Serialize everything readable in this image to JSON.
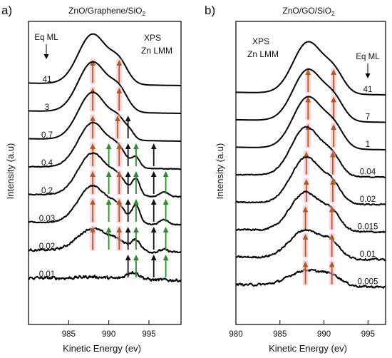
{
  "chart_data": [
    {
      "type": "line",
      "panel_label": "a)",
      "title_parts": [
        "ZnO/Graphene/SiO",
        "2"
      ],
      "xlabel": "Kinetic Energy (ev)",
      "ylabel": "Intensity (a.u)",
      "xlim": [
        980,
        999
      ],
      "x_ticks": [
        985,
        990,
        995
      ],
      "annotation_lines": [
        "XPS",
        "Zn LMM"
      ],
      "legend_header": "Eq ML",
      "colors": {
        "orange": "#b35a1f",
        "green": "#2e8b2e",
        "black": "#111111",
        "glow": "#f4b6c8"
      },
      "series": [
        {
          "name": "41",
          "peaks": [
            {
              "x": 988.0,
              "h": 1.0,
              "w": 1.8
            },
            {
              "x": 991.3,
              "h": 0.38,
              "w": 1.1
            }
          ],
          "noise": 0.0,
          "arrows": [
            {
              "x": 988.0,
              "c": "orange"
            },
            {
              "x": 991.3,
              "c": "orange"
            }
          ]
        },
        {
          "name": "3",
          "peaks": [
            {
              "x": 988.0,
              "h": 1.0,
              "w": 1.8
            },
            {
              "x": 991.3,
              "h": 0.38,
              "w": 1.1
            }
          ],
          "noise": 0.0,
          "arrows": [
            {
              "x": 988.0,
              "c": "orange"
            },
            {
              "x": 991.3,
              "c": "orange"
            }
          ]
        },
        {
          "name": "0.7",
          "peaks": [
            {
              "x": 988.0,
              "h": 0.95,
              "w": 1.8
            },
            {
              "x": 991.3,
              "h": 0.32,
              "w": 1.0
            },
            {
              "x": 992.7,
              "h": 0.08,
              "w": 0.5
            }
          ],
          "noise": 0.0,
          "arrows": [
            {
              "x": 988.0,
              "c": "orange"
            },
            {
              "x": 991.1,
              "c": "orange"
            },
            {
              "x": 992.4,
              "c": "black"
            }
          ]
        },
        {
          "name": "0.4",
          "peaks": [
            {
              "x": 988.0,
              "h": 0.9,
              "w": 1.8
            },
            {
              "x": 991.2,
              "h": 0.3,
              "w": 1.0
            },
            {
              "x": 993.4,
              "h": 0.2,
              "w": 0.5
            }
          ],
          "noise": 0.01,
          "arrows": [
            {
              "x": 988.0,
              "c": "orange"
            },
            {
              "x": 990.0,
              "c": "green"
            },
            {
              "x": 991.3,
              "c": "orange"
            },
            {
              "x": 992.4,
              "c": "black"
            },
            {
              "x": 993.4,
              "c": "green"
            },
            {
              "x": 995.6,
              "c": "black"
            }
          ]
        },
        {
          "name": "0.2",
          "peaks": [
            {
              "x": 988.0,
              "h": 0.85,
              "w": 1.8
            },
            {
              "x": 991.2,
              "h": 0.28,
              "w": 1.0
            },
            {
              "x": 993.4,
              "h": 0.32,
              "w": 0.5
            },
            {
              "x": 996.9,
              "h": 0.1,
              "w": 0.5
            }
          ],
          "noise": 0.015,
          "arrows": [
            {
              "x": 988.0,
              "c": "orange"
            },
            {
              "x": 990.0,
              "c": "green"
            },
            {
              "x": 991.3,
              "c": "orange"
            },
            {
              "x": 992.4,
              "c": "black"
            },
            {
              "x": 993.4,
              "c": "green"
            },
            {
              "x": 995.6,
              "c": "black"
            },
            {
              "x": 997.1,
              "c": "green"
            }
          ]
        },
        {
          "name": "0.03",
          "peaks": [
            {
              "x": 988.0,
              "h": 0.75,
              "w": 1.8
            },
            {
              "x": 991.2,
              "h": 0.25,
              "w": 1.0
            },
            {
              "x": 993.4,
              "h": 0.35,
              "w": 0.5
            },
            {
              "x": 996.9,
              "h": 0.1,
              "w": 0.5
            }
          ],
          "noise": 0.02,
          "arrows": [
            {
              "x": 988.0,
              "c": "orange"
            },
            {
              "x": 990.0,
              "c": "green"
            },
            {
              "x": 991.3,
              "c": "orange"
            },
            {
              "x": 992.4,
              "c": "black"
            },
            {
              "x": 993.4,
              "c": "green"
            },
            {
              "x": 995.6,
              "c": "black"
            },
            {
              "x": 997.1,
              "c": "green"
            }
          ]
        },
        {
          "name": "0.02",
          "peaks": [
            {
              "x": 988.0,
              "h": 0.45,
              "w": 1.9
            },
            {
              "x": 991.2,
              "h": 0.15,
              "w": 1.0
            },
            {
              "x": 993.4,
              "h": 0.22,
              "w": 0.6
            },
            {
              "x": 996.9,
              "h": 0.05,
              "w": 0.5
            }
          ],
          "noise": 0.035,
          "arrows": [
            {
              "x": 988.0,
              "c": "orange"
            },
            {
              "x": 990.0,
              "c": "green"
            },
            {
              "x": 991.3,
              "c": "orange"
            },
            {
              "x": 992.4,
              "c": "black"
            },
            {
              "x": 993.4,
              "c": "green"
            },
            {
              "x": 995.6,
              "c": "black"
            },
            {
              "x": 997.1,
              "c": "green"
            }
          ]
        },
        {
          "name": "0.01",
          "peaks": [
            {
              "x": 993.0,
              "h": 0.15,
              "w": 0.8
            },
            {
              "x": 988.0,
              "h": 0.04,
              "w": 1.8
            }
          ],
          "noise": 0.05,
          "arrows": [
            {
              "x": 992.4,
              "c": "black"
            },
            {
              "x": 993.4,
              "c": "green"
            },
            {
              "x": 995.6,
              "c": "black"
            },
            {
              "x": 997.1,
              "c": "green"
            }
          ]
        }
      ]
    },
    {
      "type": "line",
      "panel_label": "b)",
      "title_parts": [
        "ZnO/GO/SiO",
        "2"
      ],
      "xlabel": "Kinetic Energy (ev)",
      "ylabel": "Intensity (a.u)",
      "xlim": [
        980,
        997
      ],
      "x_ticks": [
        980,
        985,
        990,
        995
      ],
      "annotation_lines": [
        "XPS",
        "Zn LMM"
      ],
      "legend_header": "Eq ML",
      "colors": {
        "orange": "#b35a1f",
        "green": "#2e8b2e",
        "black": "#111111",
        "glow": "#f4b6c8"
      },
      "series": [
        {
          "name": "41",
          "peaks": [
            {
              "x": 988.2,
              "h": 1.0,
              "w": 1.7
            },
            {
              "x": 991.2,
              "h": 0.35,
              "w": 1.1
            }
          ],
          "noise": 0.0,
          "arrows": [
            {
              "x": 988.2,
              "c": "orange"
            },
            {
              "x": 991.1,
              "c": "orange"
            }
          ]
        },
        {
          "name": "7",
          "peaks": [
            {
              "x": 988.2,
              "h": 1.0,
              "w": 1.7
            },
            {
              "x": 991.2,
              "h": 0.35,
              "w": 1.1
            }
          ],
          "noise": 0.0,
          "arrows": [
            {
              "x": 988.2,
              "c": "orange"
            },
            {
              "x": 991.1,
              "c": "orange"
            }
          ]
        },
        {
          "name": "1",
          "peaks": [
            {
              "x": 988.2,
              "h": 1.0,
              "w": 1.7
            },
            {
              "x": 991.2,
              "h": 0.35,
              "w": 1.1
            }
          ],
          "noise": 0.0,
          "arrows": [
            {
              "x": 988.2,
              "c": "orange"
            },
            {
              "x": 991.1,
              "c": "orange"
            }
          ]
        },
        {
          "name": "0.04",
          "peaks": [
            {
              "x": 988.0,
              "h": 0.95,
              "w": 1.7
            },
            {
              "x": 991.0,
              "h": 0.3,
              "w": 1.0
            }
          ],
          "noise": 0.015,
          "arrows": [
            {
              "x": 988.0,
              "c": "orange"
            },
            {
              "x": 991.0,
              "c": "orange"
            }
          ]
        },
        {
          "name": "0.02",
          "peaks": [
            {
              "x": 988.0,
              "h": 0.9,
              "w": 1.7
            },
            {
              "x": 991.0,
              "h": 0.3,
              "w": 1.0
            }
          ],
          "noise": 0.02,
          "arrows": [
            {
              "x": 988.0,
              "c": "orange"
            },
            {
              "x": 991.0,
              "c": "orange"
            }
          ]
        },
        {
          "name": "0.015",
          "peaks": [
            {
              "x": 987.9,
              "h": 0.75,
              "w": 1.7
            },
            {
              "x": 990.9,
              "h": 0.3,
              "w": 1.0
            }
          ],
          "noise": 0.025,
          "arrows": [
            {
              "x": 987.9,
              "c": "orange"
            },
            {
              "x": 990.9,
              "c": "orange"
            }
          ]
        },
        {
          "name": "0.01",
          "peaks": [
            {
              "x": 987.9,
              "h": 0.55,
              "w": 1.8
            },
            {
              "x": 990.9,
              "h": 0.25,
              "w": 1.0
            }
          ],
          "noise": 0.03,
          "arrows": [
            {
              "x": 987.9,
              "c": "orange"
            },
            {
              "x": 990.9,
              "c": "orange"
            }
          ]
        },
        {
          "name": "0.005",
          "peaks": [
            {
              "x": 988.0,
              "h": 0.3,
              "w": 1.9
            },
            {
              "x": 991.0,
              "h": 0.15,
              "w": 1.1
            }
          ],
          "noise": 0.035,
          "arrows": [
            {
              "x": 987.9,
              "c": "orange"
            },
            {
              "x": 990.9,
              "c": "orange"
            }
          ]
        }
      ]
    }
  ]
}
